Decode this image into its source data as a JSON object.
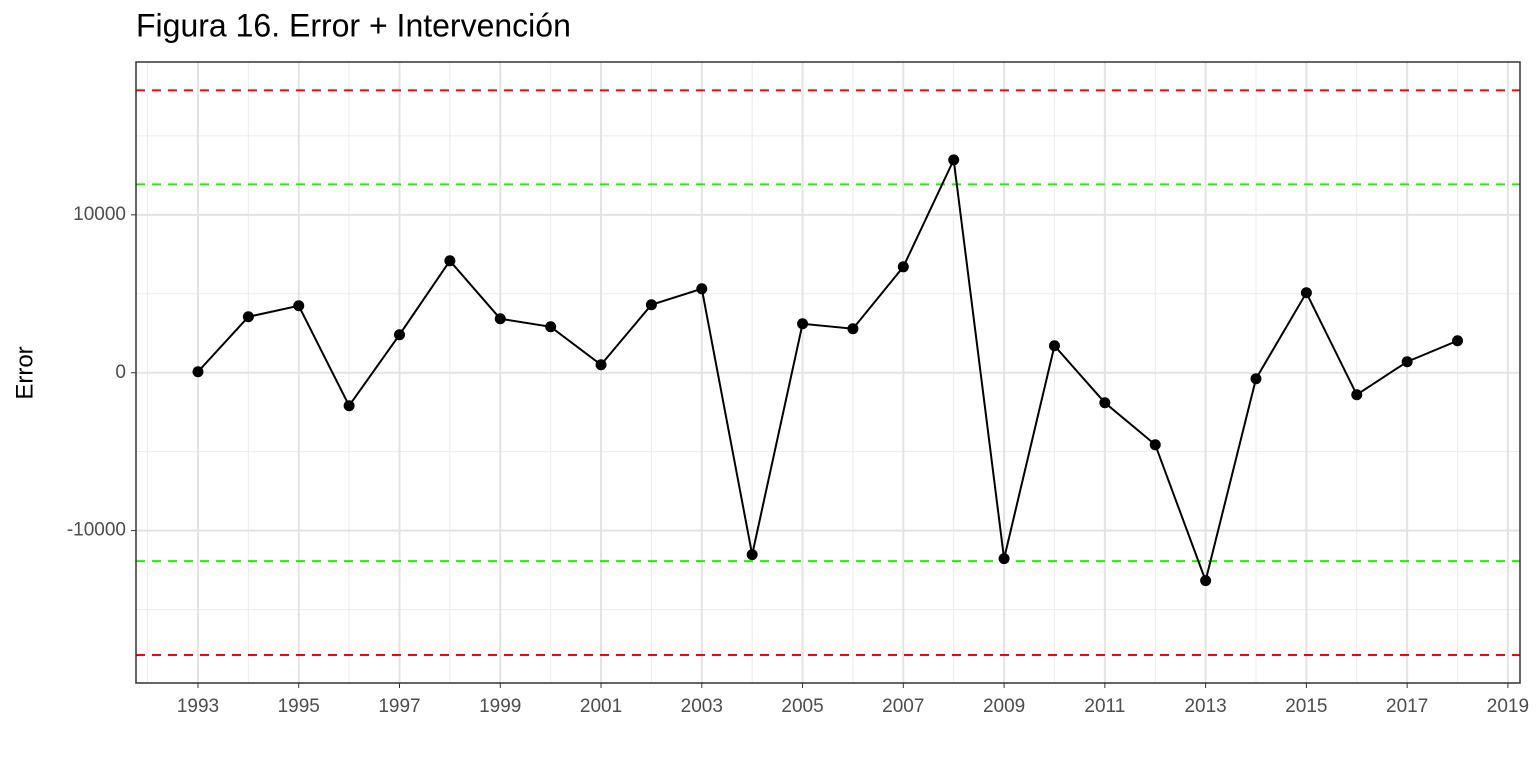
{
  "chart_data": {
    "type": "line",
    "title": "Figura 16. Error + Intervención",
    "y_label": "Error",
    "x": [
      1993,
      1994,
      1995,
      1996,
      1997,
      1998,
      1999,
      2000,
      2001,
      2002,
      2003,
      2004,
      2005,
      2006,
      2007,
      2008,
      2009,
      2010,
      2011,
      2012,
      2013,
      2014,
      2015,
      2016,
      2017,
      2018
    ],
    "series": [
      {
        "name": "Error",
        "color": "#000000",
        "values": [
          63,
          3544,
          4241,
          -2089,
          2405,
          7089,
          3418,
          2911,
          506,
          4304,
          5316,
          -11519,
          3101,
          2785,
          6709,
          13481,
          -11772,
          1709,
          -1899,
          -4557,
          -13165,
          -380,
          5063,
          -1392,
          696,
          2025
        ]
      }
    ],
    "hlines": [
      {
        "value": 17880,
        "color": "#ff0000"
      },
      {
        "value": 11930,
        "color": "#22ee00"
      },
      {
        "value": -11930,
        "color": "#22ee00"
      },
      {
        "value": -17880,
        "color": "#ff0000"
      }
    ],
    "xlim": [
      1991.77,
      2019.24
    ],
    "ylim": [
      -19650,
      19680
    ],
    "xticks": [
      1993,
      1995,
      1997,
      1999,
      2001,
      2003,
      2005,
      2007,
      2009,
      2011,
      2013,
      2015,
      2017,
      2019
    ],
    "yticks": [
      -10000,
      0,
      10000
    ],
    "grid": true
  }
}
